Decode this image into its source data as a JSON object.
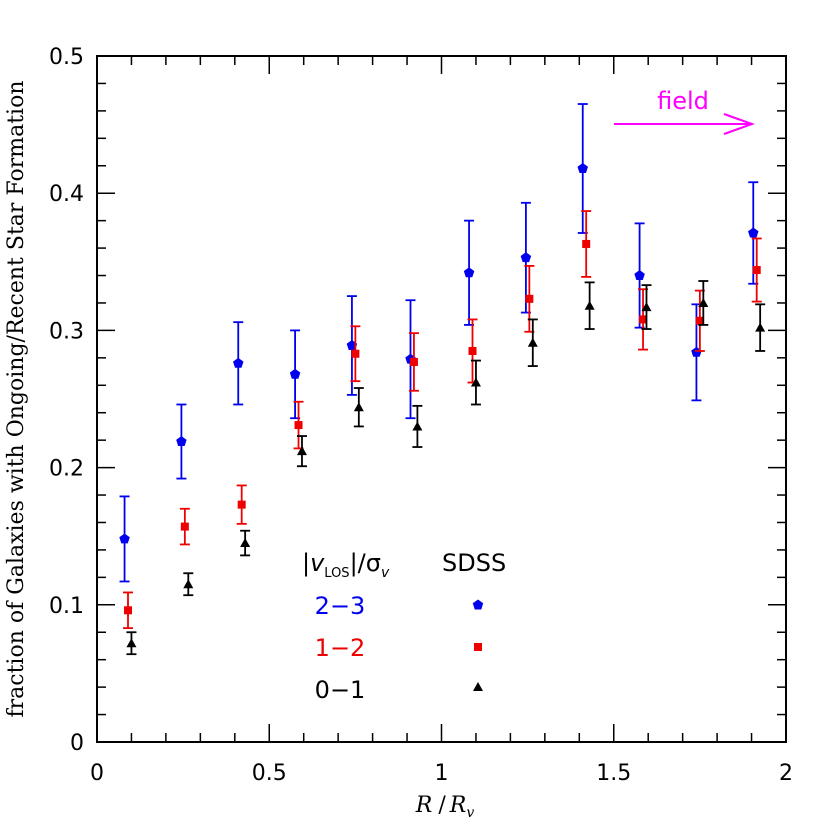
{
  "chart_data": {
    "type": "scatter",
    "xlim": [
      0,
      2
    ],
    "ylim": [
      0,
      0.5
    ],
    "x_ticks": [
      "0",
      "0.5",
      "1",
      "1.5",
      "2"
    ],
    "y_ticks": [
      "0",
      "0.1",
      "0.2",
      "0.3",
      "0.4",
      "0.5"
    ],
    "ylabel": "fraction of Galaxies with Ongoing/Recent Star Formation",
    "xlabel_main": "R",
    "xlabel_den": "R",
    "xlabel_den_sub": "v",
    "legend": {
      "header_left": "|v",
      "header_left_sub": "LOS",
      "header_mid": "|/σ",
      "header_mid_sub": "v",
      "header_right": "SDSS",
      "entries": [
        {
          "label": "2−3",
          "color": "#0000ee",
          "marker": "pentagon"
        },
        {
          "label": "1−2",
          "color": "#ee0000",
          "marker": "square"
        },
        {
          "label": "0−1",
          "color": "#000000",
          "marker": "triangle"
        }
      ]
    },
    "annotation": {
      "text": "field",
      "color": "#ff00ff"
    },
    "series": [
      {
        "name": "2−3",
        "color": "#0000ee",
        "marker": "pentagon",
        "x": [
          0.08,
          0.245,
          0.41,
          0.575,
          0.74,
          0.91,
          1.08,
          1.245,
          1.41,
          1.575,
          1.74,
          1.905
        ],
        "y": [
          0.148,
          0.219,
          0.276,
          0.268,
          0.289,
          0.279,
          0.342,
          0.353,
          0.418,
          0.34,
          0.284,
          0.371
        ],
        "err": [
          0.031,
          0.027,
          0.03,
          0.032,
          0.036,
          0.043,
          0.038,
          0.04,
          0.047,
          0.038,
          0.035,
          0.037
        ]
      },
      {
        "name": "1−2",
        "color": "#ee0000",
        "marker": "square",
        "x": [
          0.09,
          0.255,
          0.42,
          0.585,
          0.75,
          0.92,
          1.09,
          1.255,
          1.42,
          1.585,
          1.75,
          1.915
        ],
        "y": [
          0.096,
          0.157,
          0.173,
          0.231,
          0.283,
          0.277,
          0.285,
          0.323,
          0.363,
          0.308,
          0.307,
          0.344
        ],
        "err": [
          0.013,
          0.013,
          0.014,
          0.017,
          0.02,
          0.021,
          0.023,
          0.024,
          0.024,
          0.022,
          0.022,
          0.023
        ]
      },
      {
        "name": "0−1",
        "color": "#000000",
        "marker": "triangle",
        "x": [
          0.1,
          0.265,
          0.43,
          0.595,
          0.76,
          0.93,
          1.1,
          1.265,
          1.43,
          1.595,
          1.76,
          1.925
        ],
        "y": [
          0.072,
          0.115,
          0.145,
          0.212,
          0.244,
          0.23,
          0.262,
          0.291,
          0.318,
          0.317,
          0.32,
          0.302
        ],
        "err": [
          0.008,
          0.008,
          0.009,
          0.011,
          0.014,
          0.015,
          0.016,
          0.017,
          0.017,
          0.016,
          0.016,
          0.017
        ]
      }
    ]
  }
}
